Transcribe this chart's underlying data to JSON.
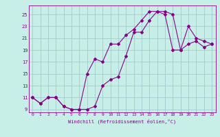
{
  "xlabel": "Windchill (Refroidissement éolien,°C)",
  "bg_color": "#c8eee8",
  "grid_color": "#a0cccc",
  "line_color": "#880088",
  "line1_x": [
    0,
    1,
    2,
    3,
    4,
    5,
    6,
    7,
    8,
    9,
    10,
    11,
    12,
    13,
    14,
    15,
    16,
    17,
    18,
    19,
    20,
    21,
    22,
    23
  ],
  "line1_y": [
    11,
    10,
    11,
    11,
    9.5,
    9,
    9,
    9,
    9.5,
    13,
    14,
    14.5,
    18,
    22,
    22,
    24,
    25.5,
    25.5,
    25,
    19,
    20,
    20.5,
    19.5,
    20
  ],
  "line2_x": [
    0,
    1,
    2,
    3,
    4,
    5,
    6,
    7,
    8,
    9,
    10,
    11,
    12,
    13,
    14,
    15,
    16,
    17,
    18,
    19,
    20,
    21,
    22,
    23
  ],
  "line2_y": [
    11,
    10,
    11,
    11,
    9.5,
    9,
    9,
    15,
    17.5,
    17,
    20,
    20,
    21.5,
    22.5,
    24,
    25.5,
    25.5,
    25,
    19,
    19,
    23,
    21,
    20.5,
    20
  ],
  "xlim": [
    -0.5,
    23.5
  ],
  "ylim": [
    8.5,
    26.5
  ],
  "xticks": [
    0,
    1,
    2,
    3,
    4,
    5,
    6,
    7,
    8,
    9,
    10,
    11,
    12,
    13,
    14,
    15,
    16,
    17,
    18,
    19,
    20,
    21,
    22,
    23
  ],
  "yticks": [
    9,
    11,
    13,
    15,
    17,
    19,
    21,
    23,
    25
  ]
}
